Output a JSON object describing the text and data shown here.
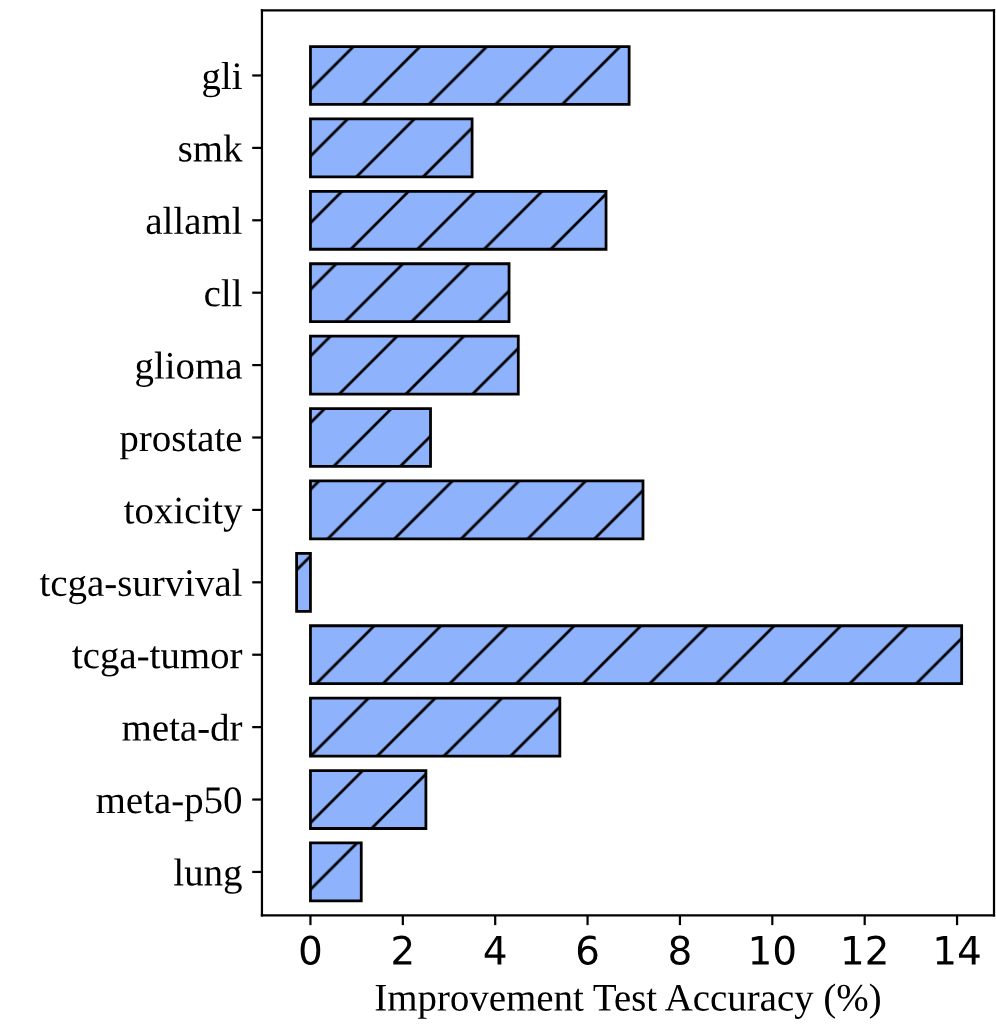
{
  "chart_data": {
    "type": "bar",
    "orientation": "horizontal",
    "xlabel": "Improvement Test Accuracy (%)",
    "categories": [
      "gli",
      "smk",
      "allaml",
      "cll",
      "glioma",
      "prostate",
      "toxicity",
      "tcga-survival",
      "tcga-tumor",
      "meta-dr",
      "meta-p50",
      "lung"
    ],
    "values": [
      6.9,
      3.5,
      6.4,
      4.3,
      4.5,
      2.6,
      7.2,
      -0.3,
      14.1,
      5.4,
      2.5,
      1.1
    ],
    "color": "#8fb2fc",
    "xlim": [
      -1.05,
      14.8
    ],
    "xticks": [
      0,
      2,
      4,
      6,
      8,
      10,
      12,
      14
    ],
    "grid": false,
    "legend": false
  }
}
